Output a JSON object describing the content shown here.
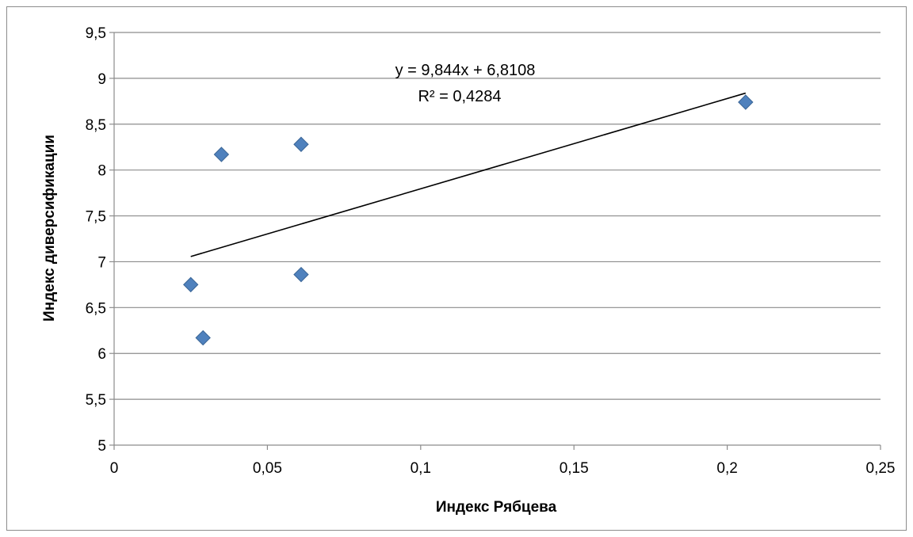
{
  "chart_data": {
    "type": "scatter",
    "xlabel": "Индекс Рябцева",
    "ylabel": "Индекс диверсификации",
    "xlim": [
      0,
      0.25
    ],
    "ylim": [
      5,
      9.5
    ],
    "x_ticks": [
      "0",
      "0,05",
      "0,1",
      "0,15",
      "0,2",
      "0,25"
    ],
    "y_ticks": [
      "5",
      "5,5",
      "6",
      "6,5",
      "7",
      "7,5",
      "8",
      "8,5",
      "9",
      "9,5"
    ],
    "x_tick_values": [
      0,
      0.05,
      0.1,
      0.15,
      0.2,
      0.25
    ],
    "y_tick_values": [
      5,
      5.5,
      6,
      6.5,
      7,
      7.5,
      8,
      8.5,
      9,
      9.5
    ],
    "grid": true,
    "legend": "none",
    "marker_color": "#4F81BD",
    "series": [
      {
        "x": [
          0.025,
          0.029,
          0.035,
          0.061,
          0.061,
          0.206
        ],
        "y": [
          6.75,
          6.17,
          8.17,
          8.28,
          6.86,
          8.74
        ]
      }
    ],
    "trendline": {
      "slope": 9.844,
      "intercept": 6.8108,
      "x_range": [
        0.025,
        0.206
      ],
      "equation": "y = 9,844x + 6,8108",
      "r2": "R² = 0,4284"
    }
  }
}
